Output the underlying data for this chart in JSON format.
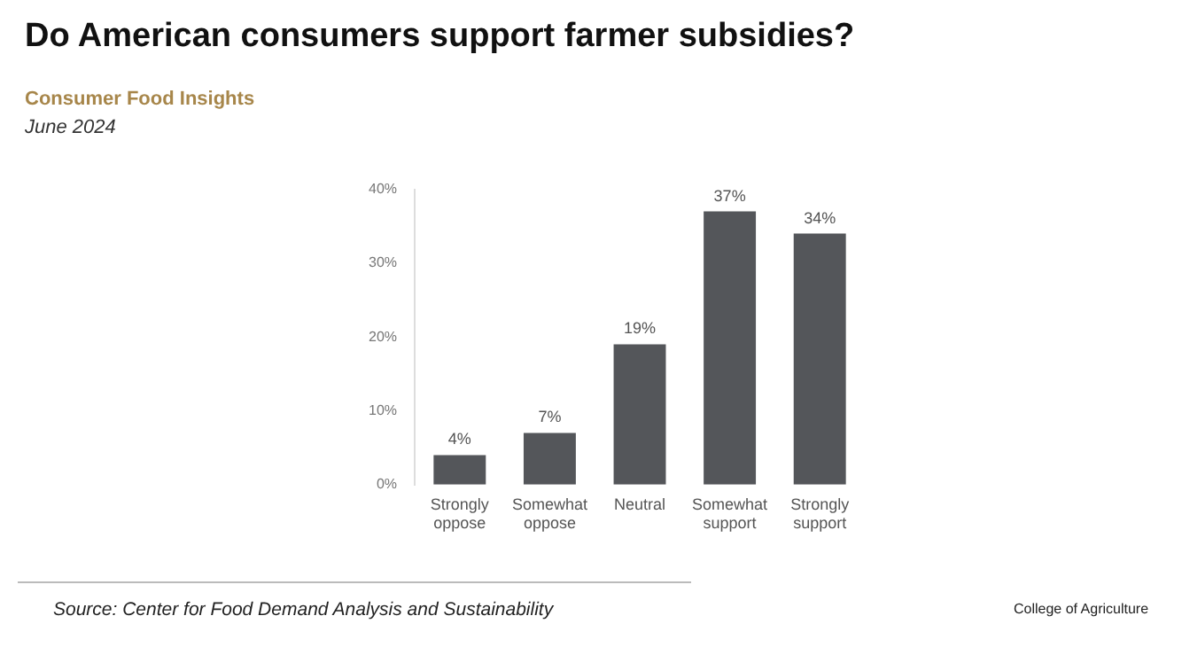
{
  "chart_data": {
    "type": "bar",
    "title": "Do American consumers support farmer subsidies?",
    "subtitle": "Consumer Food Insights",
    "annotations": [
      "June 2024",
      "Source:  Center for Food Demand Analysis and Sustainability",
      "College of Agriculture"
    ],
    "categories": [
      "Strongly oppose",
      "Somewhat oppose",
      "Neutral",
      "Somewhat support",
      "Strongly support"
    ],
    "values": [
      4,
      7,
      19,
      37,
      34
    ],
    "value_labels": [
      "4%",
      "7%",
      "19%",
      "37%",
      "34%"
    ],
    "color": "#54565a",
    "ylim": [
      0,
      40
    ],
    "yticks": [
      {
        "value": 0,
        "label": "0%"
      },
      {
        "value": 10,
        "label": "10%"
      },
      {
        "value": 20,
        "label": "20%"
      },
      {
        "value": 30,
        "label": "30%"
      },
      {
        "value": 40,
        "label": "40%"
      }
    ],
    "grid": false
  }
}
